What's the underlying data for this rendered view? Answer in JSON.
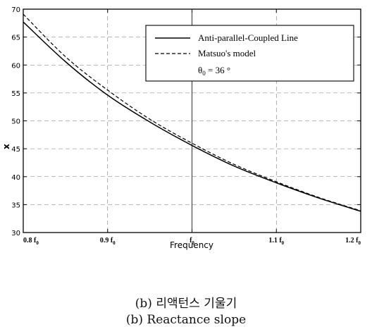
{
  "chart_data": {
    "type": "line",
    "title": "",
    "xlabel": "Frequency",
    "ylabel": "x",
    "x_ticks": [
      0.8,
      0.9,
      1.0,
      1.1,
      1.2
    ],
    "x_tick_labels": [
      {
        "prefix": "0.8",
        "base": "f",
        "sub": "0"
      },
      {
        "prefix": "0.9",
        "base": "f",
        "sub": "0"
      },
      {
        "prefix": "",
        "base": "f",
        "sub": "0"
      },
      {
        "prefix": "1.1",
        "base": "f",
        "sub": "0"
      },
      {
        "prefix": "1.2",
        "base": "f",
        "sub": "0"
      }
    ],
    "ylim": [
      30,
      70
    ],
    "y_ticks": [
      30,
      35,
      40,
      45,
      50,
      55,
      60,
      65,
      70
    ],
    "grid": true,
    "legend_position": "top-right",
    "series": [
      {
        "name": "Anti-parallel-Coupled Line",
        "style": "solid",
        "x": [
          0.8,
          0.85,
          0.9,
          0.95,
          1.0,
          1.05,
          1.1,
          1.15,
          1.2
        ],
        "y": [
          67.7,
          60.6,
          54.6,
          49.8,
          45.6,
          41.9,
          38.9,
          36.2,
          33.8
        ]
      },
      {
        "name": "Matsuo's model",
        "style": "dashed",
        "x": [
          0.8,
          0.85,
          0.9,
          0.95,
          1.0,
          1.05,
          1.1,
          1.15,
          1.2
        ],
        "y": [
          69.1,
          61.5,
          55.5,
          50.3,
          46.0,
          42.2,
          39.1,
          36.3,
          33.9
        ]
      }
    ],
    "annotation": {
      "symbol": "θ",
      "sub": "0",
      "text": " = 36 °"
    }
  },
  "captions": {
    "korean": "(b) 리액턴스 기울기",
    "english": "(b) Reactance slope"
  }
}
